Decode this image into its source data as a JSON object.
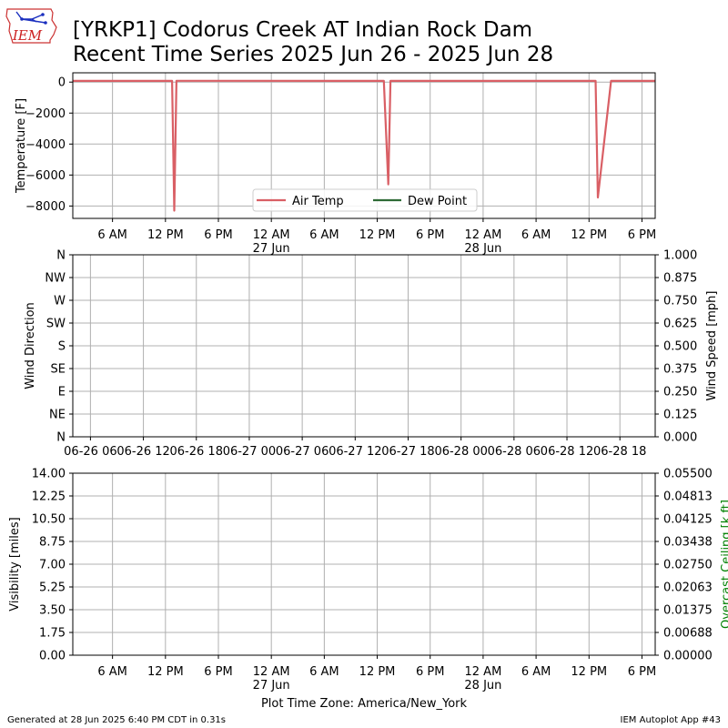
{
  "header": {
    "logo_text": "IEM",
    "title_line1": "[YRKP1] Codorus Creek  AT Indian Rock Dam",
    "title_line2": "Recent Time Series 2025 Jun 26 - 2025 Jun 28"
  },
  "footer": {
    "generated": "Generated at 28 Jun 2025 6:40 PM CDT in 0.31s",
    "app": "IEM Autoplot App #43",
    "timezone_label": "Plot Time Zone: America/New_York"
  },
  "colors": {
    "air_temp": "#d95f65",
    "dew_point": "#2e6b36",
    "ceiling_label": "#008000",
    "grid": "#b0b0b0"
  },
  "chart_data": [
    {
      "type": "line",
      "name": "temperature-panel",
      "ylabel": "Temperature [F]",
      "ylim": [
        -8800,
        600
      ],
      "yticks": [
        0,
        -2000,
        -4000,
        -6000,
        -8000
      ],
      "ytick_labels": [
        "0",
        "−2000",
        "−4000",
        "−6000",
        "−8000"
      ],
      "xlim": [
        "2025-06-26 01:30",
        "2025-06-28 19:30"
      ],
      "xticks": [
        "2025-06-26 06:00",
        "2025-06-26 12:00",
        "2025-06-26 18:00",
        "2025-06-27 00:00",
        "2025-06-27 06:00",
        "2025-06-27 12:00",
        "2025-06-27 18:00",
        "2025-06-28 00:00",
        "2025-06-28 06:00",
        "2025-06-28 12:00",
        "2025-06-28 18:00"
      ],
      "xtick_labels": [
        "6 AM",
        "12 PM",
        "6 PM",
        "12 AM",
        "6 AM",
        "12 PM",
        "6 PM",
        "12 AM",
        "6 AM",
        "12 PM",
        "6 PM"
      ],
      "xtick_sublabels": [
        "",
        "",
        "",
        "27 Jun",
        "",
        "",
        "",
        "28 Jun",
        "",
        "",
        ""
      ],
      "grid": true,
      "legend_position": "lower center",
      "series": [
        {
          "name": "Air Temp",
          "color": "#d95f65",
          "x": [
            "2025-06-26 01:30",
            "2025-06-26 12:45",
            "2025-06-26 13:00",
            "2025-06-26 13:15",
            "2025-06-27 12:45",
            "2025-06-27 13:15",
            "2025-06-27 13:30",
            "2025-06-28 12:45",
            "2025-06-28 13:00",
            "2025-06-28 14:30",
            "2025-06-28 19:30"
          ],
          "y": [
            80,
            85,
            -8300,
            85,
            80,
            -6600,
            80,
            80,
            -7450,
            80,
            80
          ]
        },
        {
          "name": "Dew Point",
          "color": "#2e6b36",
          "x": [],
          "y": []
        }
      ]
    },
    {
      "type": "line",
      "name": "wind-panel",
      "ylabel": "Wind Direction",
      "y2label": "Wind Speed [mph]",
      "ytick_labels": [
        "N",
        "NE",
        "E",
        "SE",
        "S",
        "SW",
        "W",
        "NW",
        "N"
      ],
      "y2lim": [
        0,
        1
      ],
      "y2tick_labels": [
        "0.000",
        "0.125",
        "0.250",
        "0.375",
        "0.500",
        "0.625",
        "0.750",
        "0.875",
        "1.000"
      ],
      "xlim": [
        "2025-06-26 04:00",
        "2025-06-28 22:00"
      ],
      "xticks": [
        "2025-06-26 06:00",
        "2025-06-26 12:00",
        "2025-06-26 18:00",
        "2025-06-27 00:00",
        "2025-06-27 06:00",
        "2025-06-27 12:00",
        "2025-06-27 18:00",
        "2025-06-28 00:00",
        "2025-06-28 06:00",
        "2025-06-28 12:00",
        "2025-06-28 18:00"
      ],
      "xtick_labels": [
        "06-26 06",
        "06-26 12",
        "06-26 18",
        "06-27 00",
        "06-27 06",
        "06-27 12",
        "06-27 18",
        "06-28 00",
        "06-28 06",
        "06-28 12",
        "06-28 18"
      ],
      "grid": true,
      "series": []
    },
    {
      "type": "line",
      "name": "visibility-panel",
      "ylabel": "Visibility [miles]",
      "y2label": "Overcast Ceiling [k ft]",
      "ylim": [
        0,
        14
      ],
      "ytick_labels": [
        "0.00",
        "1.75",
        "3.50",
        "5.25",
        "7.00",
        "8.75",
        "10.50",
        "12.25",
        "14.00"
      ],
      "y2lim": [
        0,
        0.055
      ],
      "y2tick_labels": [
        "0.00000",
        "0.00688",
        "0.01375",
        "0.02063",
        "0.02750",
        "0.03438",
        "0.04125",
        "0.04813",
        "0.05500"
      ],
      "xlim": [
        "2025-06-26 01:30",
        "2025-06-28 19:30"
      ],
      "xtick_labels": [
        "6 AM",
        "12 PM",
        "6 PM",
        "12 AM",
        "6 AM",
        "12 PM",
        "6 PM",
        "12 AM",
        "6 AM",
        "12 PM",
        "6 PM"
      ],
      "xtick_sublabels": [
        "",
        "",
        "",
        "27 Jun",
        "",
        "",
        "",
        "28 Jun",
        "",
        "",
        ""
      ],
      "grid": true,
      "series": []
    }
  ]
}
